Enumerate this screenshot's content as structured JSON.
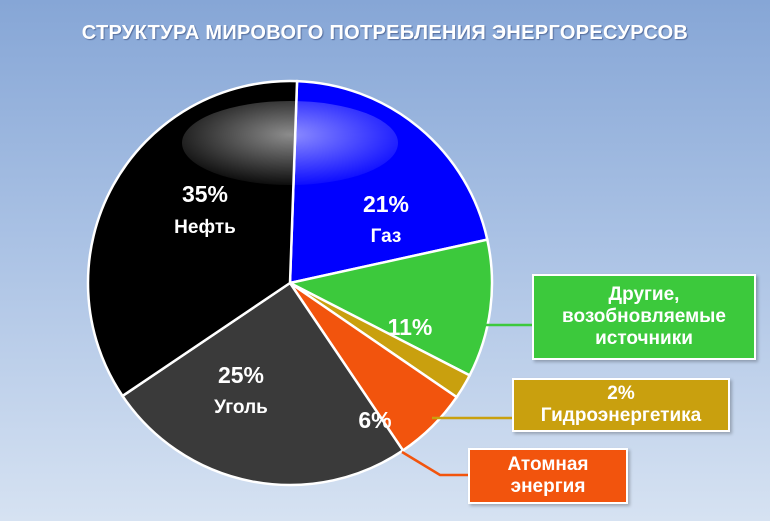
{
  "title": "СТРУКТУРА МИРОВОГО ПОТРЕБЛЕНИЯ ЭНЕРГОРЕСУРСОВ",
  "chart_data": {
    "type": "pie",
    "title": "СТРУКТУРА МИРОВОГО ПОТРЕБЛЕНИЯ ЭНЕРГОРЕСУРСОВ",
    "slices": [
      {
        "label": "Газ",
        "value": 21,
        "value_label": "21%",
        "color": "#0000ff"
      },
      {
        "label": "Другие, возобновляемые источники",
        "value": 11,
        "value_label": "11%",
        "color": "#3cc93c"
      },
      {
        "label": "Гидроэнергетика",
        "value": 2,
        "value_label": "2%",
        "color": "#c9a00e"
      },
      {
        "label": "Атомная энергия",
        "value": 6,
        "value_label": "6%",
        "color": "#f2540d"
      },
      {
        "label": "Уголь",
        "value": 25,
        "value_label": "25%",
        "color": "#3a3a3a"
      },
      {
        "label": "Нефть",
        "value": 35,
        "value_label": "35%",
        "color": "#000000"
      }
    ]
  },
  "slices_text": {
    "gas": {
      "pct": "21%",
      "name": "Газ"
    },
    "other": {
      "pct": "11%"
    },
    "nuclear": {
      "pct": "6%"
    },
    "coal": {
      "pct": "25%",
      "name": "Уголь"
    },
    "oil": {
      "pct": "35%",
      "name": "Нефть"
    }
  },
  "callouts": {
    "other": {
      "line1": "Другие,",
      "line2": "возобновляемые",
      "line3": "источники"
    },
    "hydro": {
      "line1": "2%",
      "line2": "Гидроэнергетика"
    },
    "nuclear": {
      "line1": "Атомная",
      "line2": "энергия"
    }
  }
}
